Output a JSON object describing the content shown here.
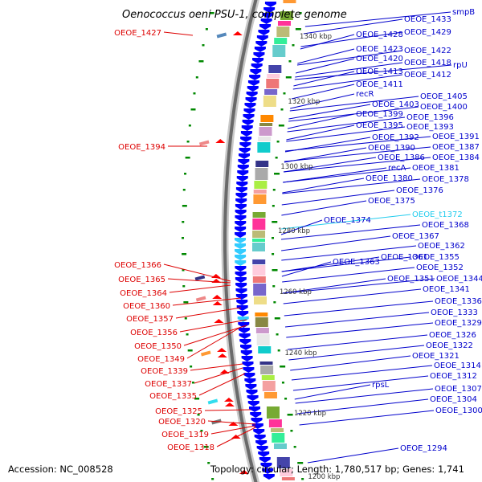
{
  "title": "Oenococcus oeni PSU-1, complete genome",
  "footer": {
    "accession": "Accession: NC_008528",
    "summary": "Topology: circular; Length: 1,780,517 bp; Genes: 1,741"
  },
  "colors": {
    "forward_label": "#0000cc",
    "reverse_label": "#dd0000",
    "rna_label": "#22ccee",
    "cds_forward": "#0000ff",
    "cds_reverse": "#ff0000",
    "backbone": "#888888",
    "tick": "#008800"
  },
  "kbp_ticks": [
    {
      "label": "1340 kbp",
      "kbp": 1340
    },
    {
      "label": "1320 kbp",
      "kbp": 1320
    },
    {
      "label": "1300 kbp",
      "kbp": 1300
    },
    {
      "label": "1280 kbp",
      "kbp": 1280
    },
    {
      "label": "1260 kbp",
      "kbp": 1260
    },
    {
      "label": "1240 kbp",
      "kbp": 1240
    },
    {
      "label": "1220 kbp",
      "kbp": 1220
    },
    {
      "label": "1200 kbp",
      "kbp": 1200
    }
  ],
  "forward_labels": [
    {
      "text": "smpB",
      "type": "cds"
    },
    {
      "text": "OEOE_1433",
      "type": "cds"
    },
    {
      "text": "OEOE_1428",
      "type": "cds"
    },
    {
      "text": "OEOE_1429",
      "type": "cds"
    },
    {
      "text": "OEOE_1423",
      "type": "cds"
    },
    {
      "text": "OEOE_1422",
      "type": "cds"
    },
    {
      "text": "OEOE_1420",
      "type": "cds"
    },
    {
      "text": "OEOE_1418",
      "type": "cds"
    },
    {
      "text": "rpU",
      "type": "cds"
    },
    {
      "text": "OEOE_1413",
      "type": "cds"
    },
    {
      "text": "OEOE_1412",
      "type": "cds"
    },
    {
      "text": "OEOE_1411",
      "type": "cds"
    },
    {
      "text": "recR",
      "type": "cds"
    },
    {
      "text": "OEOE_1405",
      "type": "cds"
    },
    {
      "text": "OEOE_1403",
      "type": "cds"
    },
    {
      "text": "OEOE_1400",
      "type": "cds"
    },
    {
      "text": "OEOE_1399",
      "type": "cds"
    },
    {
      "text": "OEOE_1396",
      "type": "cds"
    },
    {
      "text": "OEOE_1395",
      "type": "cds"
    },
    {
      "text": "OEOE_1393",
      "type": "cds"
    },
    {
      "text": "OEOE_1392",
      "type": "cds"
    },
    {
      "text": "OEOE_1391",
      "type": "cds"
    },
    {
      "text": "OEOE_1390",
      "type": "cds"
    },
    {
      "text": "OEOE_1387",
      "type": "cds"
    },
    {
      "text": "OEOE_1386",
      "type": "cds"
    },
    {
      "text": "OEOE_1384",
      "type": "cds"
    },
    {
      "text": "recA",
      "type": "cds"
    },
    {
      "text": "OEOE_1381",
      "type": "cds"
    },
    {
      "text": "OEOE_1380",
      "type": "cds"
    },
    {
      "text": "OEOE_1378",
      "type": "cds"
    },
    {
      "text": "OEOE_1376",
      "type": "cds"
    },
    {
      "text": "OEOE_1375",
      "type": "cds"
    },
    {
      "text": "OEOE_t1372",
      "type": "rna"
    },
    {
      "text": "OEOE_1374",
      "type": "cds"
    },
    {
      "text": "OEOE_1368",
      "type": "cds"
    },
    {
      "text": "OEOE_1367",
      "type": "cds"
    },
    {
      "text": "OEOE_1362",
      "type": "cds"
    },
    {
      "text": "OEOE_1363",
      "type": "cds"
    },
    {
      "text": "OEOE_1361",
      "type": "cds"
    },
    {
      "text": "OEOE_1355",
      "type": "cds"
    },
    {
      "text": "OEOE_1352",
      "type": "cds"
    },
    {
      "text": "OEOE_1351",
      "type": "cds"
    },
    {
      "text": "OEOE_1344",
      "type": "cds"
    },
    {
      "text": "OEOE_1341",
      "type": "cds"
    },
    {
      "text": "OEOE_1336",
      "type": "cds"
    },
    {
      "text": "OEOE_1333",
      "type": "cds"
    },
    {
      "text": "OEOE_1329",
      "type": "cds"
    },
    {
      "text": "OEOE_1326",
      "type": "cds"
    },
    {
      "text": "OEOE_1322",
      "type": "cds"
    },
    {
      "text": "OEOE_1321",
      "type": "cds"
    },
    {
      "text": "OEOE_1314",
      "type": "cds"
    },
    {
      "text": "OEOE_1312",
      "type": "cds"
    },
    {
      "text": "rpsL",
      "type": "cds"
    },
    {
      "text": "OEOE_1307",
      "type": "cds"
    },
    {
      "text": "OEOE_1304",
      "type": "cds"
    },
    {
      "text": "OEOE_1300",
      "type": "cds"
    },
    {
      "text": "OEOE_1294",
      "type": "cds"
    }
  ],
  "reverse_labels": [
    {
      "text": "OEOE_1427"
    },
    {
      "text": "OEOE_1394"
    },
    {
      "text": "OEOE_1366"
    },
    {
      "text": "OEOE_1365"
    },
    {
      "text": "OEOE_1364"
    },
    {
      "text": "OEOE_1360"
    },
    {
      "text": "OEOE_1357"
    },
    {
      "text": "OEOE_1356"
    },
    {
      "text": "OEOE_1350"
    },
    {
      "text": "OEOE_1349"
    },
    {
      "text": "OEOE_1339"
    },
    {
      "text": "OEOE_1337"
    },
    {
      "text": "OEOE_1335"
    },
    {
      "text": "OEOE_1325"
    },
    {
      "text": "OEOE_1320"
    },
    {
      "text": "OEOE_1319"
    },
    {
      "text": "OEOE_1318"
    }
  ]
}
